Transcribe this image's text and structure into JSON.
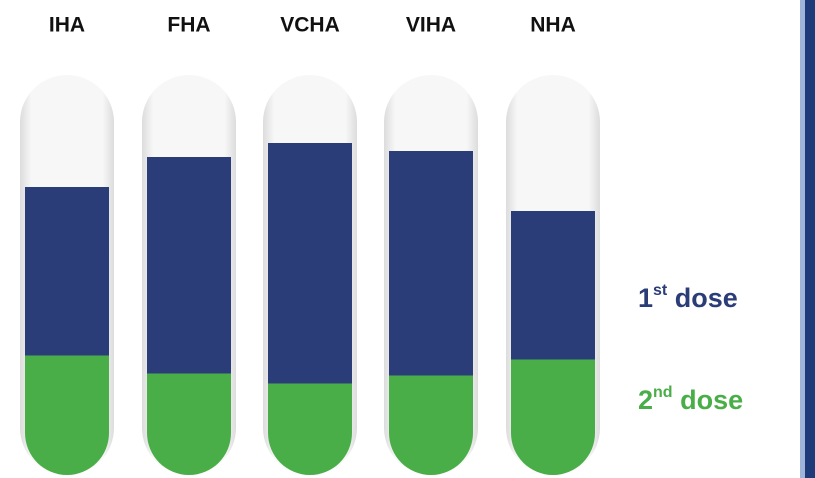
{
  "chart_data": {
    "type": "stacked-tube",
    "categories": [
      "IHA",
      "FHA",
      "VCHA",
      "VIHA",
      "NHA"
    ],
    "series": [
      {
        "name": "1st dose",
        "color": "#2b3d78",
        "values": [
          42,
          54,
          60,
          56,
          37
        ]
      },
      {
        "name": "2nd dose",
        "color": "#4aae48",
        "values": [
          30,
          25.5,
          23,
          25,
          29
        ]
      }
    ],
    "ylim": [
      0,
      100
    ]
  }
}
